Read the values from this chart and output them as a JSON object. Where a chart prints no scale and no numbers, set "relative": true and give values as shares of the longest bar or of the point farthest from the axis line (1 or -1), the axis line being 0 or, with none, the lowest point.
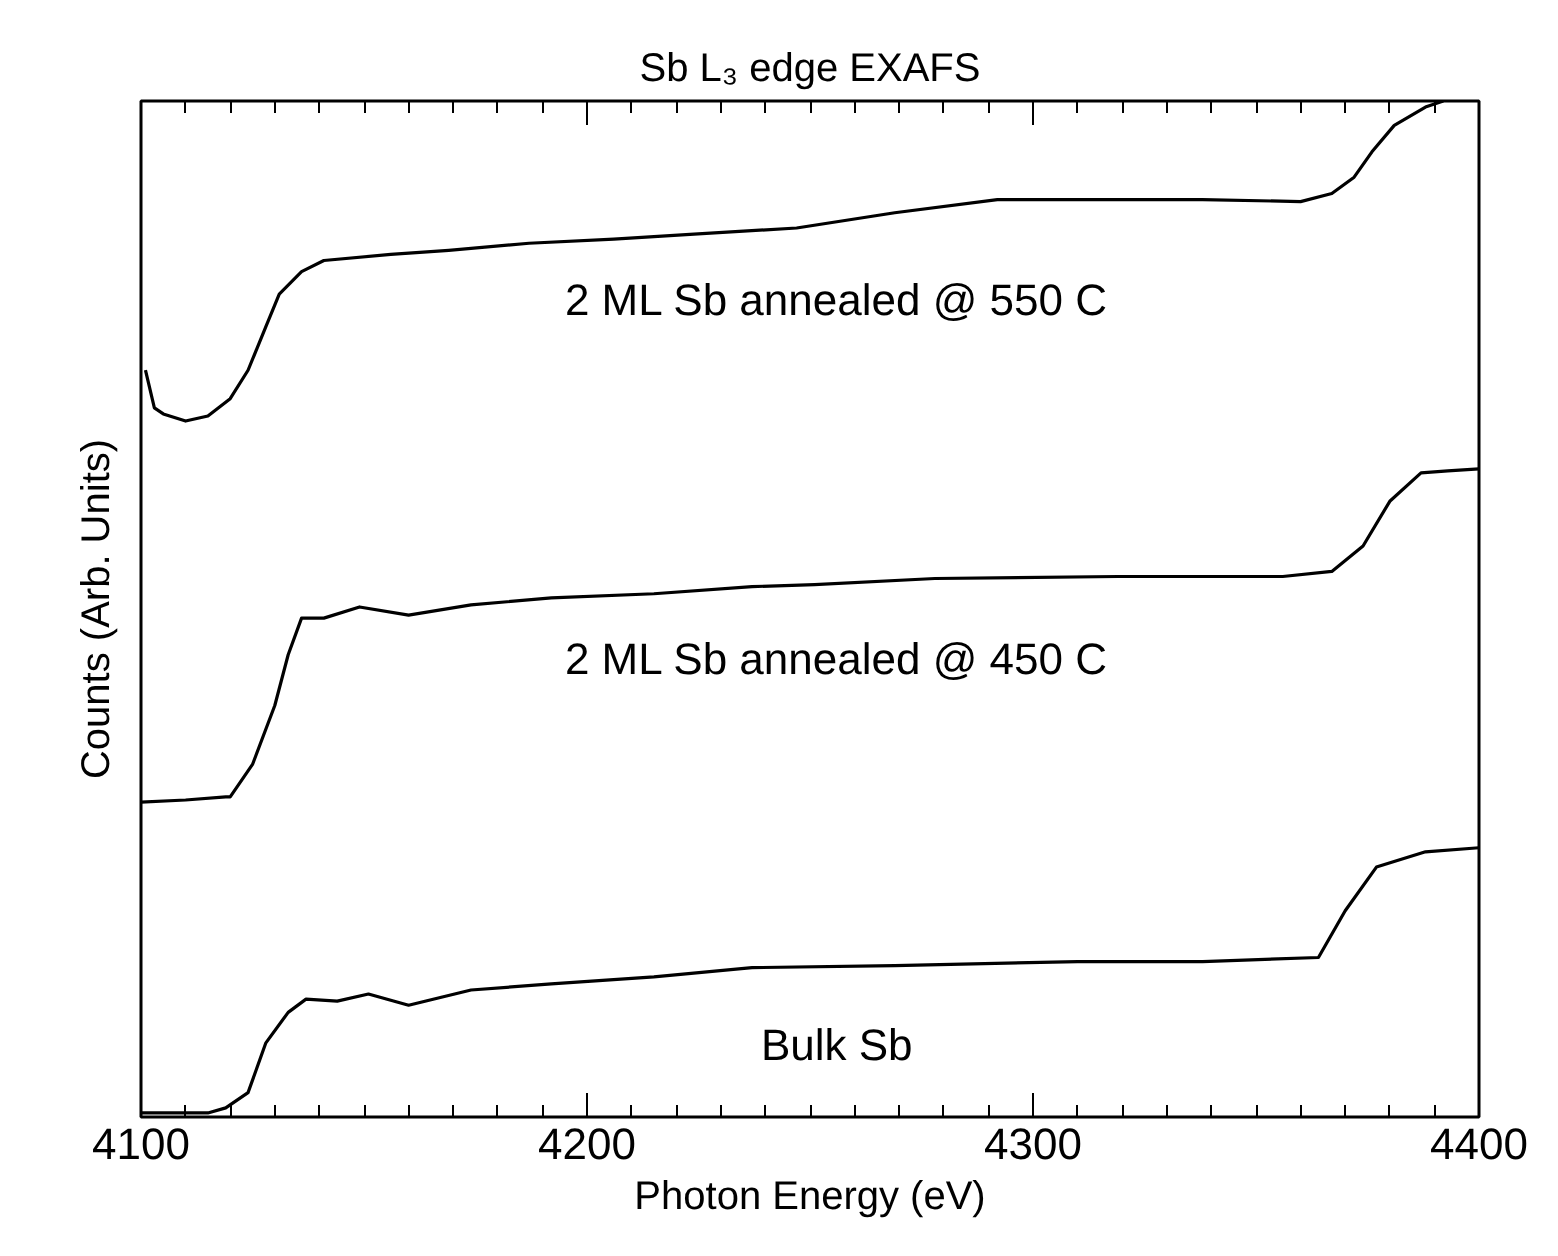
{
  "chart_data": {
    "type": "line",
    "title": "Sb L₃ edge EXAFS",
    "xlabel": "Photon Energy (eV)",
    "ylabel": "Counts (Arb. Units)",
    "relative": true,
    "xlim": [
      4100,
      4400
    ],
    "xticks": [
      4100,
      4200,
      4300,
      4400
    ],
    "marker": "none",
    "line_style": "solid",
    "series": [
      {
        "name": "2 ML Sb annealed @ 550 C",
        "color": "#000000",
        "x": [
          4101,
          4103,
          4105,
          4110,
          4115,
          4120,
          4124,
          4128,
          4131,
          4136,
          4141,
          4156,
          4169,
          4187,
          4206,
          4224,
          4247,
          4269,
          4292,
          4315,
          4338,
          4360,
          4367,
          4372,
          4376,
          4381,
          4388,
          4392
        ],
        "values": [
          0.735,
          0.698,
          0.692,
          0.685,
          0.69,
          0.707,
          0.735,
          0.778,
          0.81,
          0.832,
          0.843,
          0.849,
          0.853,
          0.86,
          0.864,
          0.869,
          0.875,
          0.89,
          0.903,
          0.903,
          0.903,
          0.901,
          0.909,
          0.925,
          0.95,
          0.976,
          0.994,
          1.0
        ]
      },
      {
        "name": "2 ML Sb annealed @ 450 C",
        "color": "#000000",
        "x": [
          4100,
          4110,
          4119,
          4120,
          4125,
          4130,
          4133,
          4136,
          4141,
          4149,
          4160,
          4174,
          4192,
          4215,
          4237,
          4251,
          4278,
          4319,
          4356,
          4367,
          4374,
          4380,
          4387,
          4393,
          4400
        ],
        "values": [
          0.31,
          0.312,
          0.315,
          0.315,
          0.347,
          0.405,
          0.455,
          0.491,
          0.491,
          0.502,
          0.494,
          0.504,
          0.511,
          0.515,
          0.522,
          0.524,
          0.53,
          0.532,
          0.532,
          0.537,
          0.562,
          0.606,
          0.634,
          0.636,
          0.638
        ]
      },
      {
        "name": "Bulk Sb",
        "color": "#000000",
        "x": [
          4100,
          4115,
          4119,
          4124,
          4128,
          4133,
          4137,
          4144,
          4151,
          4160,
          4174,
          4192,
          4215,
          4237,
          4269,
          4310,
          4338,
          4364,
          4370,
          4377,
          4388,
          4400
        ],
        "values": [
          0.004,
          0.004,
          0.009,
          0.024,
          0.073,
          0.103,
          0.116,
          0.114,
          0.121,
          0.11,
          0.125,
          0.131,
          0.138,
          0.147,
          0.149,
          0.153,
          0.153,
          0.157,
          0.203,
          0.246,
          0.261,
          0.265
        ]
      }
    ]
  }
}
